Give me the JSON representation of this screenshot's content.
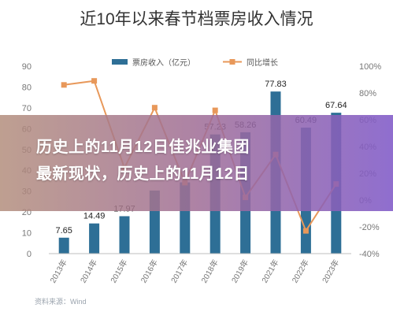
{
  "title": "近10年以来春节档票房收入情况",
  "overlay": {
    "line1": "历史上的11月12日佳兆业集团",
    "line2": "最新现状，历史上的11月12日"
  },
  "source": "资料来源：Wind",
  "colors": {
    "bar": "#2e6f96",
    "line": "#e8985a",
    "axis_text": "#777777",
    "grid": "#e3e3e3"
  },
  "chart_data": {
    "type": "bar",
    "categories": [
      "2013年",
      "2014年",
      "2015年",
      "2016年",
      "2017年",
      "2018年",
      "2019年",
      "2021年",
      "2022年",
      "2023年"
    ],
    "series": [
      {
        "name": "票房收入（亿元）",
        "type": "bar",
        "axis": "left",
        "values": [
          7.65,
          14.49,
          17.97,
          30.3,
          34.2,
          57.23,
          58.26,
          77.83,
          60.49,
          67.64
        ],
        "labels": [
          "7.65",
          "14.49",
          "17.97",
          "",
          "",
          "57.23",
          "58.26",
          "77.83",
          "60.49",
          "67.64"
        ]
      },
      {
        "name": "同比增长",
        "type": "line",
        "axis": "right",
        "values": [
          86,
          89,
          24,
          69,
          13,
          67,
          2,
          34,
          -23,
          12
        ]
      }
    ],
    "y_left": {
      "min": 0,
      "max": 90,
      "ticks": [
        "0",
        "10",
        "20",
        "30",
        "40",
        "50",
        "60",
        "70",
        "80",
        "90"
      ]
    },
    "y_right": {
      "min": -40,
      "max": 100,
      "ticks": [
        "-40%",
        "-20%",
        "0%",
        "20%",
        "40%",
        "60%",
        "80%",
        "100%"
      ]
    },
    "legend": "top-center",
    "grid": false
  }
}
